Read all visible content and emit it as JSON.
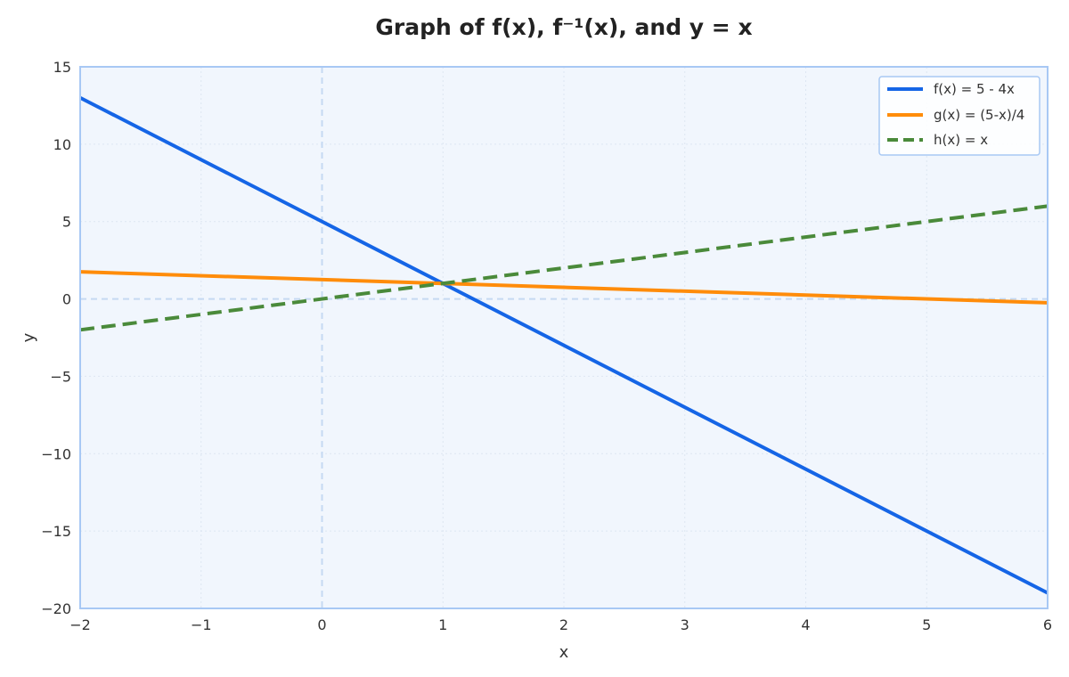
{
  "chart_data": {
    "type": "line",
    "title": "Graph of f(x), f⁻¹(x), and y = x",
    "xlabel": "x",
    "ylabel": "y",
    "xlim": [
      -2,
      6
    ],
    "ylim": [
      -20,
      15
    ],
    "xticks": [
      -2,
      -1,
      0,
      1,
      2,
      3,
      4,
      5,
      6
    ],
    "yticks": [
      -20,
      -15,
      -10,
      -5,
      0,
      5,
      10,
      15
    ],
    "grid": true,
    "legend_position": "top-right",
    "series": [
      {
        "name": "f(x) = 5 - 4x",
        "x": [
          -2,
          6
        ],
        "y": [
          13,
          -19
        ],
        "color": "#1565e6",
        "style": "solid"
      },
      {
        "name": "g(x) = (5-x)/4",
        "x": [
          -2,
          6
        ],
        "y": [
          1.75,
          -0.25
        ],
        "color": "#ff8c0a",
        "style": "solid"
      },
      {
        "name": "h(x) = x",
        "x": [
          -2,
          6
        ],
        "y": [
          -2,
          6
        ],
        "color": "#4a8a3a",
        "style": "dashed"
      }
    ],
    "colors": {
      "plot_background": "#f1f6fd",
      "frame": "#a8c8f4",
      "zero_lines": "#c5d9f2",
      "grid": "#dde6f2"
    }
  }
}
